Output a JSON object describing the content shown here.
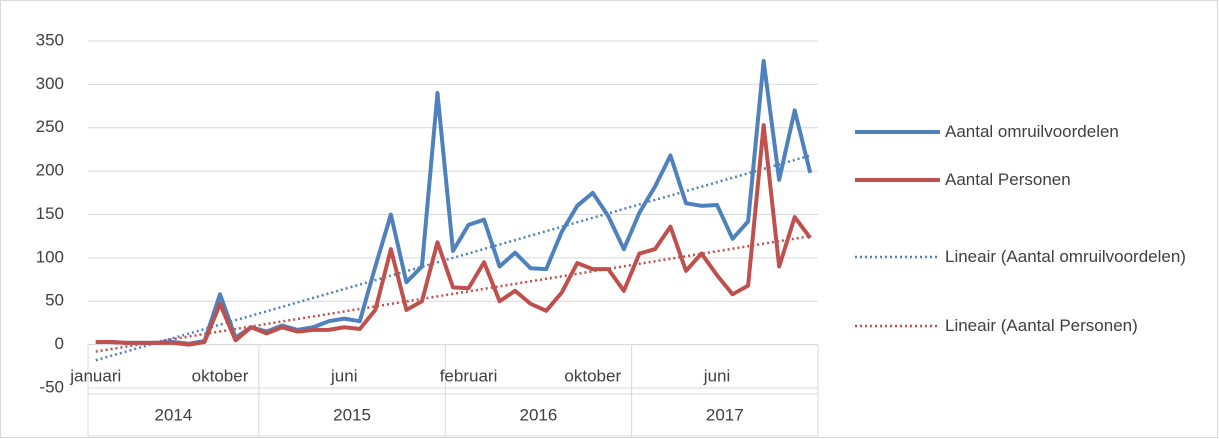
{
  "chart_data": {
    "type": "line",
    "categories": [
      "januari",
      null,
      null,
      null,
      null,
      null,
      null,
      null,
      "oktober",
      null,
      null,
      null,
      null,
      null,
      null,
      null,
      "juni",
      null,
      null,
      null,
      null,
      null,
      null,
      null,
      "februari",
      null,
      null,
      null,
      null,
      null,
      null,
      null,
      "oktober",
      null,
      null,
      null,
      null,
      null,
      null,
      null,
      "juni",
      null,
      null,
      null,
      null,
      null,
      null
    ],
    "groups": [
      {
        "label": "2014",
        "span": 11
      },
      {
        "label": "2015",
        "span": 12
      },
      {
        "label": "2016",
        "span": 12
      },
      {
        "label": "2017",
        "span": 12
      }
    ],
    "series": [
      {
        "name": "Aantal omruilvoordelen",
        "color": "#4f81bd",
        "values": [
          3,
          3,
          2,
          2,
          2,
          3,
          1,
          4,
          58,
          8,
          20,
          15,
          22,
          17,
          20,
          27,
          30,
          27,
          90,
          150,
          72,
          90,
          290,
          108,
          138,
          144,
          90,
          106,
          88,
          87,
          130,
          160,
          175,
          148,
          110,
          152,
          182,
          218,
          163,
          160,
          161,
          122,
          142,
          327,
          190,
          270,
          198
        ]
      },
      {
        "name": "Aantal Personen",
        "color": "#c0504d",
        "values": [
          3,
          3,
          2,
          2,
          2,
          2,
          0,
          3,
          47,
          5,
          20,
          13,
          20,
          15,
          17,
          17,
          20,
          18,
          40,
          110,
          40,
          50,
          118,
          66,
          65,
          95,
          50,
          62,
          47,
          39,
          60,
          94,
          87,
          87,
          62,
          105,
          110,
          136,
          85,
          105,
          80,
          58,
          68,
          253,
          90,
          147,
          123
        ]
      }
    ],
    "trendlines": [
      {
        "name": "Lineair (Aantal omruilvoordelen)",
        "color": "#4f81bd",
        "start": -18,
        "end": 218
      },
      {
        "name": "Lineair (Aantal Personen)",
        "color": "#c0504d",
        "start": -8,
        "end": 125
      }
    ],
    "ylim": [
      -50,
      350
    ],
    "yticks": [
      -50,
      0,
      50,
      100,
      150,
      200,
      250,
      300,
      350
    ],
    "grid": true
  }
}
